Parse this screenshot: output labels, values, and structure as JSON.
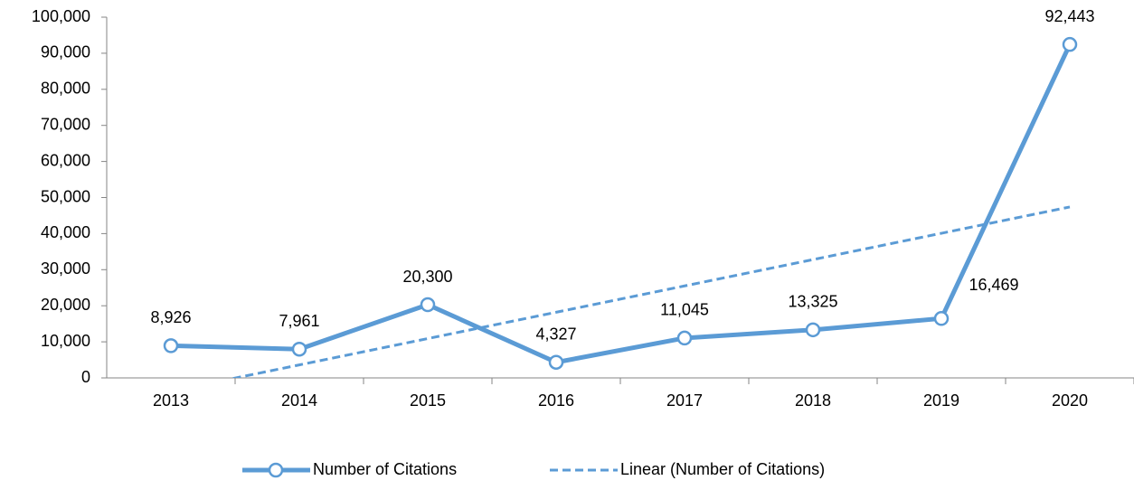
{
  "chart_data": {
    "type": "line",
    "categories": [
      "2013",
      "2014",
      "2015",
      "2016",
      "2017",
      "2018",
      "2019",
      "2020"
    ],
    "series": [
      {
        "name": "Number of Citations",
        "color": "#5b9bd5",
        "values": [
          8926,
          7961,
          20300,
          4327,
          11045,
          13325,
          16469,
          92443
        ],
        "value_labels": [
          "8,926",
          "7,961",
          "20,300",
          "4,327",
          "11,045",
          "13,325",
          "16,469",
          "92,443"
        ]
      },
      {
        "name": "Linear (Number of Citations)",
        "color": "#5b9bd5",
        "dashed": true,
        "values": [
          -3690,
          3607,
          10904,
          18201,
          25498,
          32795,
          40092,
          47389
        ]
      }
    ],
    "ylim": [
      0,
      100000
    ],
    "yticks": [
      0,
      {
        "value": 10000,
        "label": "10,000"
      },
      {
        "value": 20000,
        "label": "20,000"
      },
      {
        "value": 30000,
        "label": "30,000"
      },
      {
        "value": 40000,
        "label": "40,000"
      },
      {
        "value": 50000,
        "label": "50,000"
      },
      {
        "value": 60000,
        "label": "60,000"
      },
      {
        "value": 70000,
        "label": "70,000"
      },
      {
        "value": 80000,
        "label": "80,000"
      },
      {
        "value": 90000,
        "label": "90,000"
      },
      {
        "value": 100000,
        "label": "100,000"
      }
    ],
    "grid": false,
    "legend": "bottom"
  }
}
